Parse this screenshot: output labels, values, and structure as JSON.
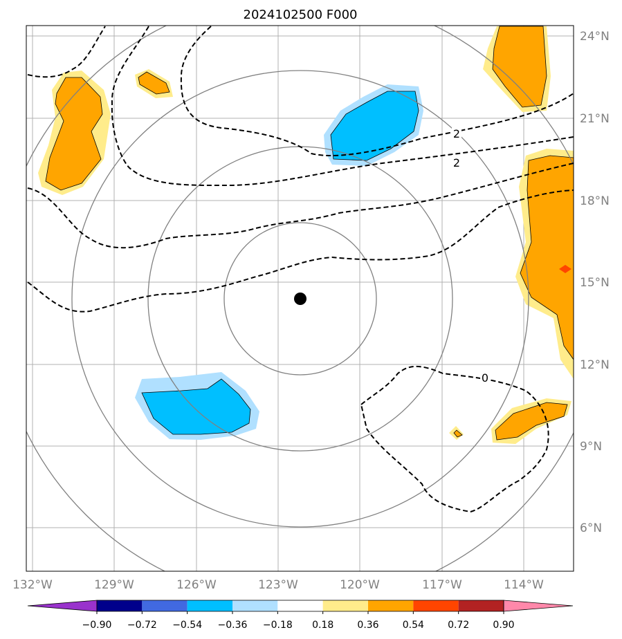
{
  "title": "2024102500 F000",
  "colors": {
    "grid": "#b0b0b0",
    "range_ring": "#808080",
    "contour": "#000000",
    "center_marker": "#000000",
    "pos_weak": "#ffec8b",
    "pos_mid": "#ffa500",
    "pos_strong": "#ff4500",
    "neg_weak": "#b0e0ff",
    "neg_mid": "#00bfff"
  },
  "map": {
    "lon_ticks": [
      "132°W",
      "129°W",
      "126°W",
      "123°W",
      "120°W",
      "117°W",
      "114°W"
    ],
    "lat_ticks": [
      "24°N",
      "21°N",
      "18°N",
      "15°N",
      "12°N",
      "9°N",
      "6°N"
    ],
    "center_marker": {
      "lon": -122.2,
      "lat": 14.5
    },
    "contour_labels": [
      "2",
      "2",
      "0"
    ]
  },
  "colorbar": {
    "ticks": [
      "−0.90",
      "−0.72",
      "−0.54",
      "−0.36",
      "−0.18",
      "0.18",
      "0.36",
      "0.54",
      "0.72",
      "0.90"
    ],
    "colors": [
      "#9932cc",
      "#00008b",
      "#4169e1",
      "#00bfff",
      "#b0e0ff",
      "#ffffff",
      "#ffec8b",
      "#ffa500",
      "#ff4500",
      "#b22222",
      "#ff88aa"
    ]
  }
}
